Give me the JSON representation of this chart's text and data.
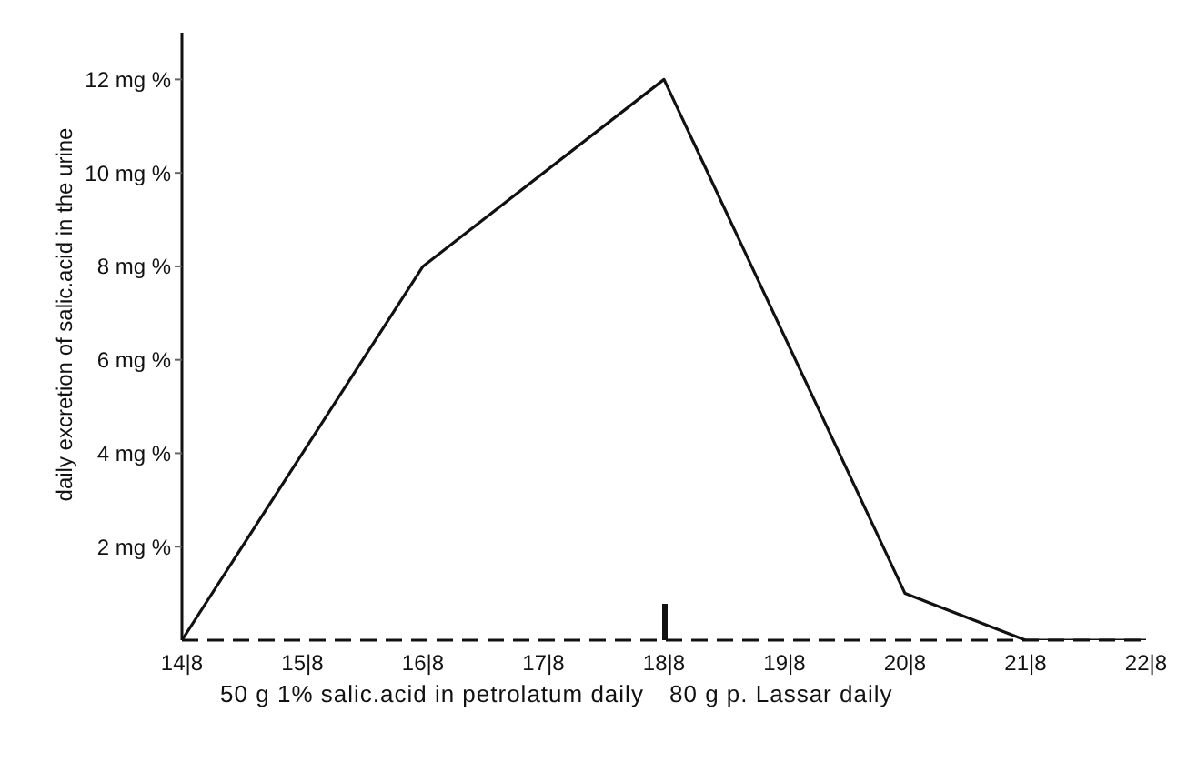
{
  "chart_data": {
    "type": "line",
    "ylabel": "daily excretion of salic.acid in the urine",
    "categories": [
      "14|8",
      "15|8",
      "16|8",
      "17|8",
      "18|8",
      "19|8",
      "20|8",
      "21|8",
      "22|8"
    ],
    "series": [
      {
        "color": "#111111",
        "values": [
          0,
          null,
          8,
          null,
          12,
          null,
          1,
          0,
          0
        ]
      }
    ],
    "ylim": [
      0,
      13
    ],
    "yticks": [
      {
        "value": 2,
        "label": "2 mg %"
      },
      {
        "value": 4,
        "label": "4 mg %"
      },
      {
        "value": 6,
        "label": "6 mg %"
      },
      {
        "value": 8,
        "label": "8 mg %"
      },
      {
        "value": 10,
        "label": "10 mg %"
      },
      {
        "value": 12,
        "label": "12 mg %"
      }
    ],
    "annotations": [
      "50 g 1% salic.acid in petrolatum daily",
      "80 g p. Lassar daily"
    ],
    "grid": false,
    "legend": false,
    "marker": "none",
    "line_style": "solid"
  }
}
